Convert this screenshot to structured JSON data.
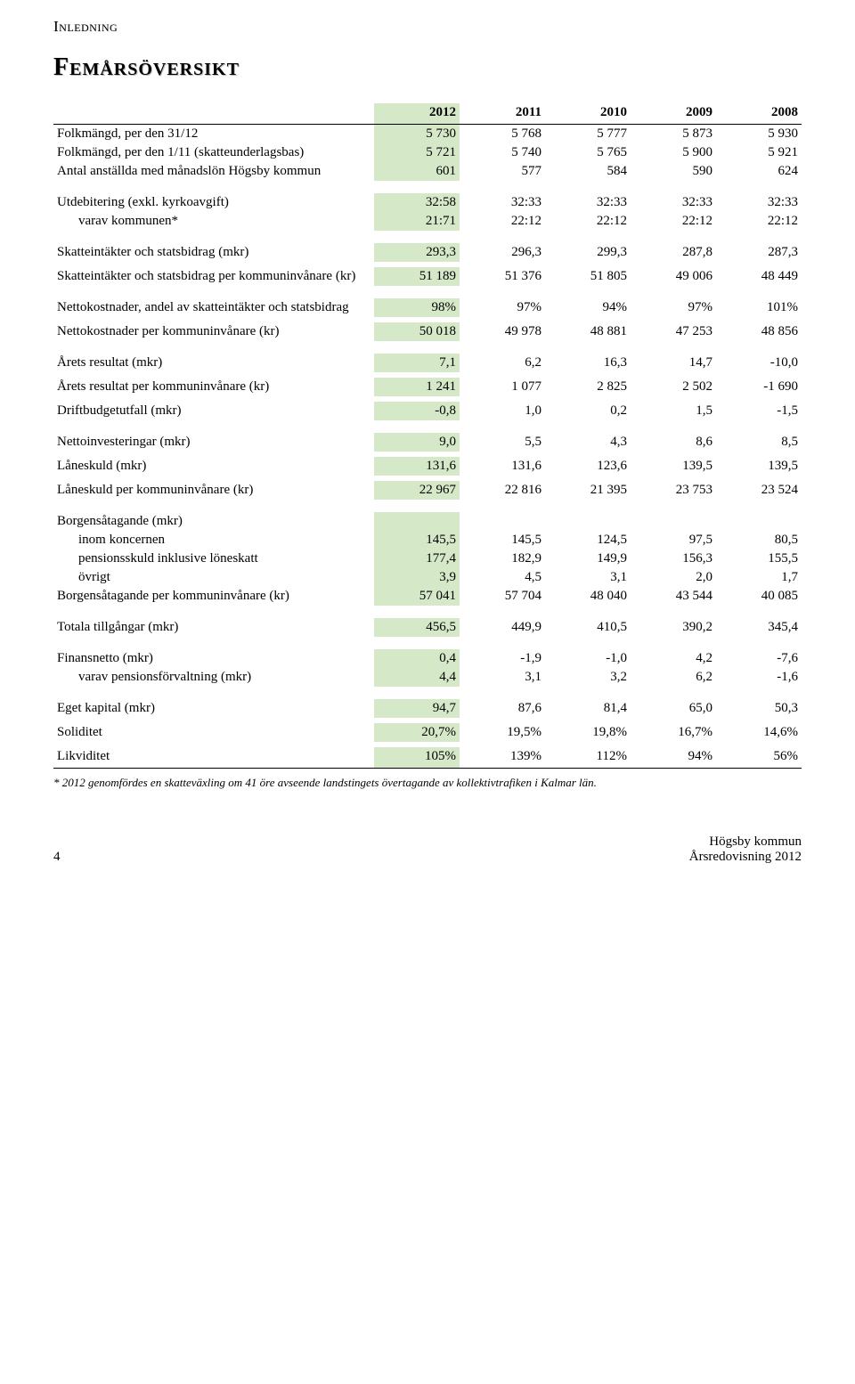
{
  "head_label": "Inledning",
  "title": "Femårsöversikt",
  "years": [
    "2012",
    "2011",
    "2010",
    "2009",
    "2008"
  ],
  "highlight_col_color": "#d5e8c8",
  "text_color": "#000000",
  "bg_color": "#ffffff",
  "rows": [
    {
      "type": "data",
      "label": "Folkmängd, per den 31/12",
      "v": [
        "5 730",
        "5 768",
        "5 777",
        "5 873",
        "5 930"
      ]
    },
    {
      "type": "data",
      "label": "Folkmängd, per den 1/11 (skatteunderlagsbas)",
      "v": [
        "5 721",
        "5 740",
        "5 765",
        "5 900",
        "5 921"
      ]
    },
    {
      "type": "data",
      "label": "Antal anställda med månadslön Högsby kommun",
      "v": [
        "601",
        "577",
        "584",
        "590",
        "624"
      ]
    },
    {
      "type": "spacer"
    },
    {
      "type": "data",
      "label": "Utdebitering (exkl. kyrkoavgift)",
      "v": [
        "32:58",
        "32:33",
        "32:33",
        "32:33",
        "32:33"
      ]
    },
    {
      "type": "data",
      "label": "varav kommunen*",
      "indent": true,
      "v": [
        "21:71",
        "22:12",
        "22:12",
        "22:12",
        "22:12"
      ]
    },
    {
      "type": "spacer"
    },
    {
      "type": "data",
      "label": "Skatteintäkter och statsbidrag (mkr)",
      "v": [
        "293,3",
        "296,3",
        "299,3",
        "287,8",
        "287,3"
      ]
    },
    {
      "type": "tight-spacer"
    },
    {
      "type": "data",
      "label": "Skatteintäkter och statsbidrag per kommuninvånare (kr)",
      "v": [
        "51 189",
        "51 376",
        "51 805",
        "49 006",
        "48 449"
      ]
    },
    {
      "type": "spacer"
    },
    {
      "type": "data",
      "label": "Nettokostnader, andel av skatteintäkter och statsbidrag",
      "v": [
        "98%",
        "97%",
        "94%",
        "97%",
        "101%"
      ]
    },
    {
      "type": "tight-spacer"
    },
    {
      "type": "data",
      "label": "Nettokostnader per kommuninvånare (kr)",
      "v": [
        "50 018",
        "49 978",
        "48 881",
        "47 253",
        "48 856"
      ]
    },
    {
      "type": "spacer"
    },
    {
      "type": "data",
      "label": "Årets resultat (mkr)",
      "v": [
        "7,1",
        "6,2",
        "16,3",
        "14,7",
        "-10,0"
      ]
    },
    {
      "type": "tight-spacer"
    },
    {
      "type": "data",
      "label": "Årets resultat per kommuninvånare (kr)",
      "v": [
        "1 241",
        "1 077",
        "2 825",
        "2 502",
        "-1 690"
      ]
    },
    {
      "type": "tight-spacer"
    },
    {
      "type": "data",
      "label": "Driftbudgetutfall (mkr)",
      "v": [
        "-0,8",
        "1,0",
        "0,2",
        "1,5",
        "-1,5"
      ]
    },
    {
      "type": "spacer"
    },
    {
      "type": "data",
      "label": "Nettoinvesteringar (mkr)",
      "v": [
        "9,0",
        "5,5",
        "4,3",
        "8,6",
        "8,5"
      ]
    },
    {
      "type": "tight-spacer"
    },
    {
      "type": "data",
      "label": "Låneskuld (mkr)",
      "v": [
        "131,6",
        "131,6",
        "123,6",
        "139,5",
        "139,5"
      ]
    },
    {
      "type": "tight-spacer"
    },
    {
      "type": "data",
      "label": "Låneskuld per kommuninvånare (kr)",
      "v": [
        "22 967",
        "22 816",
        "21 395",
        "23 753",
        "23 524"
      ]
    },
    {
      "type": "spacer"
    },
    {
      "type": "data",
      "label": "Borgensåtagande (mkr)",
      "v": [
        "",
        "",
        "",
        "",
        ""
      ]
    },
    {
      "type": "data",
      "label": "inom koncernen",
      "indent": true,
      "v": [
        "145,5",
        "145,5",
        "124,5",
        "97,5",
        "80,5"
      ]
    },
    {
      "type": "data",
      "label": "pensionsskuld inklusive löneskatt",
      "indent": true,
      "v": [
        "177,4",
        "182,9",
        "149,9",
        "156,3",
        "155,5"
      ]
    },
    {
      "type": "data",
      "label": "övrigt",
      "indent": true,
      "v": [
        "3,9",
        "4,5",
        "3,1",
        "2,0",
        "1,7"
      ]
    },
    {
      "type": "data",
      "label": "Borgensåtagande per kommuninvånare (kr)",
      "v": [
        "57 041",
        "57 704",
        "48 040",
        "43 544",
        "40 085"
      ]
    },
    {
      "type": "spacer"
    },
    {
      "type": "data",
      "label": "Totala tillgångar (mkr)",
      "v": [
        "456,5",
        "449,9",
        "410,5",
        "390,2",
        "345,4"
      ]
    },
    {
      "type": "spacer"
    },
    {
      "type": "data",
      "label": "Finansnetto (mkr)",
      "v": [
        "0,4",
        "-1,9",
        "-1,0",
        "4,2",
        "-7,6"
      ]
    },
    {
      "type": "data",
      "label": "varav pensionsförvaltning (mkr)",
      "indent": true,
      "v": [
        "4,4",
        "3,1",
        "3,2",
        "6,2",
        "-1,6"
      ]
    },
    {
      "type": "spacer"
    },
    {
      "type": "data",
      "label": "Eget kapital (mkr)",
      "v": [
        "94,7",
        "87,6",
        "81,4",
        "65,0",
        "50,3"
      ]
    },
    {
      "type": "tight-spacer"
    },
    {
      "type": "data",
      "label": "Soliditet",
      "v": [
        "20,7%",
        "19,5%",
        "19,8%",
        "16,7%",
        "14,6%"
      ]
    },
    {
      "type": "tight-spacer"
    },
    {
      "type": "data",
      "label": "Likviditet",
      "v": [
        "105%",
        "139%",
        "112%",
        "94%",
        "56%"
      ],
      "bottom_divider": true
    }
  ],
  "footnote": "* 2012 genomfördes en skatteväxling om 41 öre avseende landstingets övertagande av kollektivtrafiken i Kalmar län.",
  "footer": {
    "page_num": "4",
    "right_line1": "Högsby kommun",
    "right_line2": "Årsredovisning 2012"
  }
}
